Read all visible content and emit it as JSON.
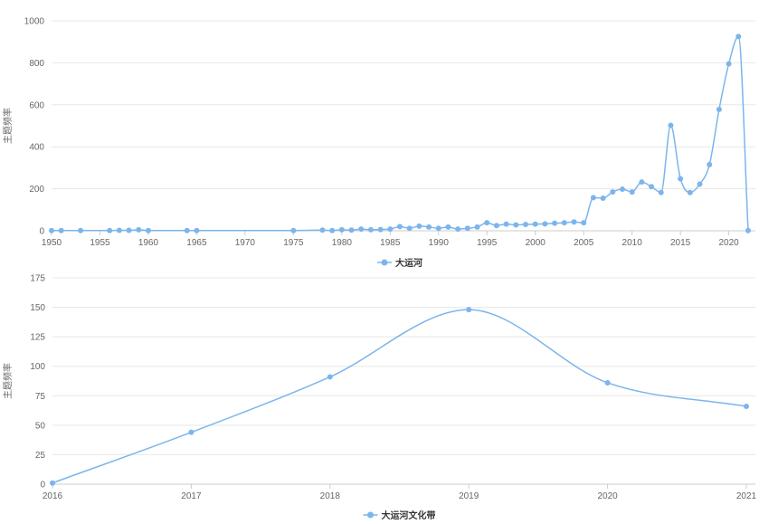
{
  "colors": {
    "series": "#7cb5ec",
    "grid": "#e8e8e8",
    "axis": "#cccccc",
    "text": "#666666"
  },
  "chart_data": [
    {
      "type": "line",
      "title": "",
      "xlabel": "",
      "ylabel": "主题频率",
      "legend": "bottom-center",
      "grid": true,
      "xlim": [
        1950,
        2022
      ],
      "ylim": [
        0,
        1000
      ],
      "x_ticks": [
        1950,
        1955,
        1960,
        1965,
        1970,
        1975,
        1980,
        1985,
        1990,
        1995,
        2000,
        2005,
        2010,
        2015,
        2020
      ],
      "y_ticks": [
        0,
        200,
        400,
        600,
        800,
        1000
      ],
      "series": [
        {
          "name": "大运河",
          "x": [
            1950,
            1951,
            1953,
            1956,
            1957,
            1958,
            1959,
            1960,
            1964,
            1965,
            1975,
            1978,
            1979,
            1980,
            1981,
            1982,
            1983,
            1984,
            1985,
            1986,
            1987,
            1988,
            1989,
            1990,
            1991,
            1992,
            1993,
            1994,
            1995,
            1996,
            1997,
            1998,
            1999,
            2000,
            2001,
            2002,
            2003,
            2004,
            2005,
            2006,
            2007,
            2008,
            2009,
            2010,
            2011,
            2012,
            2013,
            2014,
            2015,
            2016,
            2017,
            2018,
            2019,
            2020,
            2021,
            2022
          ],
          "values": [
            1,
            1,
            1,
            1,
            2,
            2,
            5,
            1,
            1,
            1,
            1,
            3,
            1,
            5,
            3,
            8,
            5,
            6,
            8,
            20,
            12,
            22,
            18,
            12,
            18,
            8,
            12,
            18,
            38,
            25,
            32,
            28,
            30,
            32,
            33,
            36,
            38,
            42,
            38,
            158,
            155,
            185,
            198,
            185,
            232,
            210,
            182,
            502,
            248,
            182,
            222,
            315,
            578,
            795,
            925,
            1
          ]
        }
      ]
    },
    {
      "type": "line",
      "title": "",
      "xlabel": "",
      "ylabel": "主题频率",
      "legend": "bottom-center",
      "grid": true,
      "xlim": [
        2016,
        2021
      ],
      "ylim": [
        0,
        175
      ],
      "x_ticks": [
        2016,
        2017,
        2018,
        2019,
        2020,
        2021
      ],
      "y_ticks": [
        0,
        25,
        50,
        75,
        100,
        125,
        150,
        175
      ],
      "series": [
        {
          "name": "大运河文化带",
          "x": [
            2016,
            2017,
            2018,
            2019,
            2020,
            2021
          ],
          "values": [
            1,
            44,
            91,
            148,
            86,
            66
          ]
        }
      ]
    }
  ]
}
